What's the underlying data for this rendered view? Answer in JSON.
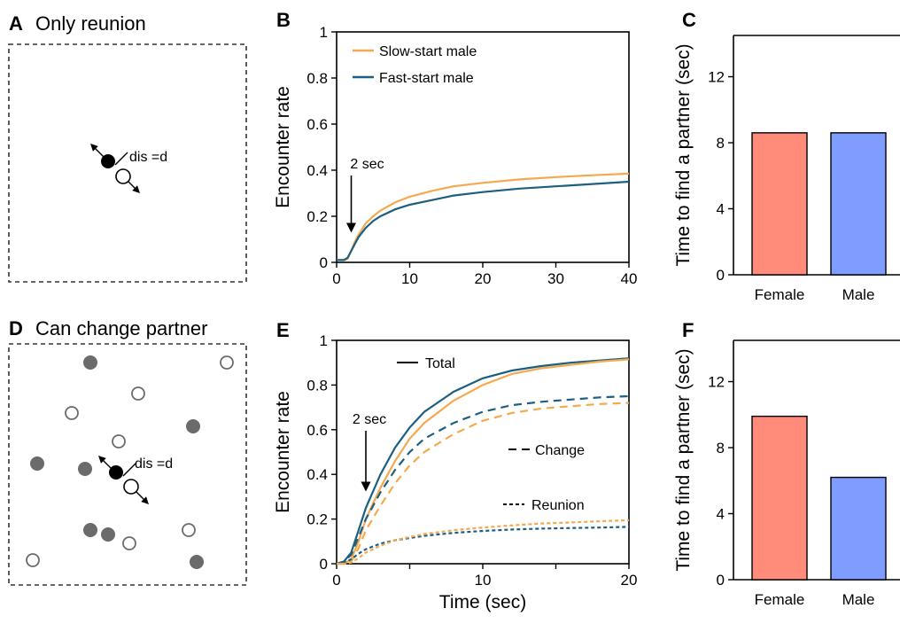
{
  "panels": {
    "A": {
      "letter": "A",
      "title": "Only reunion",
      "dis_label": "dis =d"
    },
    "D": {
      "letter": "D",
      "title": "Can change partner",
      "dis_label": "dis =d"
    },
    "B": {
      "letter": "B"
    },
    "C": {
      "letter": "C"
    },
    "E": {
      "letter": "E"
    },
    "F": {
      "letter": "F"
    }
  },
  "colors": {
    "slow": "#F5A94E",
    "fast": "#1D5F80",
    "female": "#FF8C7A",
    "male": "#7F9CFF"
  },
  "icons": {
    "fixed_agent": "filled-circle",
    "moving_agent": "hollow-circle",
    "direction": "double-arrow"
  },
  "chart_data": [
    {
      "id": "B",
      "type": "line",
      "ylabel": "Encounter rate",
      "xlabel": "",
      "xlim": [
        0,
        40
      ],
      "ylim": [
        0,
        1
      ],
      "xticks": [
        0,
        10,
        20,
        30,
        40
      ],
      "yticks": [
        0,
        0.2,
        0.4,
        0.6,
        0.8,
        1
      ],
      "ytick_labels": [
        "0",
        "0.2",
        "0.4",
        "0.6",
        "0.8",
        "1"
      ],
      "legend": [
        "Slow-start male",
        "Fast-start male"
      ],
      "annotation": {
        "text": "2 sec",
        "x": 2
      },
      "series": [
        {
          "name": "Slow-start male",
          "color": "slow",
          "style": "solid",
          "x": [
            0,
            1,
            1.5,
            2,
            2.5,
            3,
            4,
            5,
            6,
            8,
            10,
            13,
            16,
            20,
            25,
            30,
            35,
            40
          ],
          "y": [
            0.01,
            0.01,
            0.015,
            0.05,
            0.09,
            0.12,
            0.17,
            0.2,
            0.225,
            0.26,
            0.285,
            0.31,
            0.33,
            0.345,
            0.36,
            0.37,
            0.378,
            0.385
          ]
        },
        {
          "name": "Fast-start male",
          "color": "fast",
          "style": "solid",
          "x": [
            0,
            1,
            1.5,
            2,
            2.5,
            3,
            4,
            5,
            6,
            8,
            10,
            13,
            16,
            20,
            25,
            30,
            35,
            40
          ],
          "y": [
            0.01,
            0.01,
            0.02,
            0.05,
            0.08,
            0.11,
            0.15,
            0.18,
            0.2,
            0.23,
            0.25,
            0.27,
            0.29,
            0.305,
            0.32,
            0.33,
            0.34,
            0.35
          ]
        }
      ]
    },
    {
      "id": "C",
      "type": "bar",
      "ylabel": "Time to find a partner (sec)",
      "ylim": [
        0,
        14.5
      ],
      "yticks": [
        0,
        4,
        8,
        12
      ],
      "categories": [
        "Female",
        "Male"
      ],
      "values": [
        8.6,
        8.6
      ],
      "bar_colors": [
        "female",
        "male"
      ]
    },
    {
      "id": "E",
      "type": "line",
      "ylabel": "Encounter rate",
      "xlabel": "Time (sec)",
      "xlim": [
        0,
        20
      ],
      "ylim": [
        0,
        1
      ],
      "xticks": [
        0,
        10,
        20
      ],
      "minor_xticks": [
        5,
        15
      ],
      "yticks": [
        0,
        0.2,
        0.4,
        0.6,
        0.8,
        1
      ],
      "ytick_labels": [
        "0",
        "0.2",
        "0.4",
        "0.6",
        "0.8",
        "1"
      ],
      "legend": [
        "Total",
        "Change",
        "Reunion"
      ],
      "annotation": {
        "text": "2 sec",
        "x": 2
      },
      "series": [
        {
          "name": "Total",
          "color": "fast",
          "style": "solid",
          "x": [
            0,
            0.5,
            1,
            1.5,
            2,
            3,
            4,
            5,
            6,
            8,
            10,
            12,
            14,
            16,
            18,
            20
          ],
          "y": [
            0,
            0.01,
            0.05,
            0.15,
            0.25,
            0.4,
            0.52,
            0.61,
            0.68,
            0.77,
            0.83,
            0.865,
            0.885,
            0.9,
            0.91,
            0.92
          ]
        },
        {
          "name": "Total",
          "color": "slow",
          "style": "solid",
          "x": [
            0,
            0.5,
            1,
            1.5,
            2,
            3,
            4,
            5,
            6,
            8,
            10,
            12,
            14,
            16,
            18,
            20
          ],
          "y": [
            0,
            0,
            0.02,
            0.1,
            0.2,
            0.34,
            0.46,
            0.56,
            0.63,
            0.73,
            0.8,
            0.85,
            0.875,
            0.89,
            0.905,
            0.915
          ]
        },
        {
          "name": "Change",
          "color": "fast",
          "style": "dashed",
          "x": [
            0,
            0.5,
            1,
            1.5,
            2,
            3,
            4,
            5,
            6,
            8,
            10,
            12,
            14,
            16,
            18,
            20
          ],
          "y": [
            0,
            0.01,
            0.04,
            0.12,
            0.2,
            0.32,
            0.42,
            0.5,
            0.56,
            0.63,
            0.68,
            0.71,
            0.725,
            0.735,
            0.745,
            0.75
          ]
        },
        {
          "name": "Change",
          "color": "slow",
          "style": "dashed",
          "x": [
            0,
            0.5,
            1,
            1.5,
            2,
            3,
            4,
            5,
            6,
            8,
            10,
            12,
            14,
            16,
            18,
            20
          ],
          "y": [
            0,
            0,
            0.01,
            0.07,
            0.15,
            0.26,
            0.36,
            0.44,
            0.5,
            0.58,
            0.64,
            0.675,
            0.695,
            0.705,
            0.715,
            0.72
          ]
        },
        {
          "name": "Reunion",
          "color": "fast",
          "style": "dotted",
          "x": [
            0,
            0.5,
            1,
            1.5,
            2,
            3,
            4,
            5,
            6,
            8,
            10,
            12,
            14,
            16,
            18,
            20
          ],
          "y": [
            0,
            0.005,
            0.02,
            0.045,
            0.065,
            0.09,
            0.105,
            0.115,
            0.125,
            0.138,
            0.147,
            0.153,
            0.157,
            0.16,
            0.162,
            0.165
          ]
        },
        {
          "name": "Reunion",
          "color": "slow",
          "style": "dotted",
          "x": [
            0,
            0.5,
            1,
            1.5,
            2,
            3,
            4,
            5,
            6,
            8,
            10,
            12,
            14,
            16,
            18,
            20
          ],
          "y": [
            0,
            0,
            0.005,
            0.025,
            0.05,
            0.08,
            0.105,
            0.12,
            0.133,
            0.15,
            0.162,
            0.172,
            0.18,
            0.185,
            0.19,
            0.195
          ]
        }
      ]
    },
    {
      "id": "F",
      "type": "bar",
      "ylabel": "Time to find a partner (sec)",
      "ylim": [
        0,
        14.5
      ],
      "yticks": [
        0,
        4,
        8,
        12
      ],
      "categories": [
        "Female",
        "Male"
      ],
      "values": [
        9.9,
        6.2
      ],
      "bar_colors": [
        "female",
        "male"
      ]
    }
  ]
}
